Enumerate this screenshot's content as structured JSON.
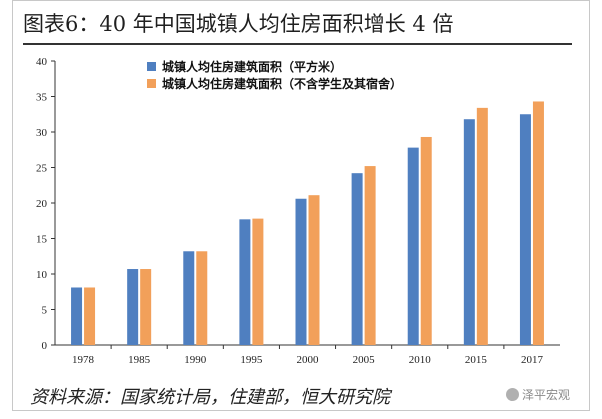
{
  "title": "图表6：40 年中国城镇人均住房面积增长 4 倍",
  "source": "资料来源：国家统计局，住建部，恒大研究院",
  "watermark": "泽平宏观",
  "colors": {
    "series1": "#4f7fc0",
    "series2": "#f2a05a",
    "axis": "#333333",
    "rule": "#333333"
  },
  "chart_data": {
    "type": "bar",
    "categories": [
      "1978",
      "1985",
      "1990",
      "1995",
      "2000",
      "2005",
      "2010",
      "2015",
      "2017"
    ],
    "series": [
      {
        "name": "城镇人均住房建筑面积（平方米）",
        "values": [
          8.1,
          10.7,
          13.2,
          17.7,
          20.6,
          24.2,
          27.8,
          31.8,
          32.5
        ]
      },
      {
        "name": "城镇人均住房建筑面积（不含学生及其宿舍）",
        "values": [
          8.1,
          10.7,
          13.2,
          17.8,
          21.1,
          25.2,
          29.3,
          33.4,
          34.3
        ]
      }
    ],
    "ylim": [
      0,
      40
    ],
    "yticks": [
      0,
      5,
      10,
      15,
      20,
      25,
      30,
      35,
      40
    ],
    "xlabel": "",
    "ylabel": "",
    "grid": false,
    "legend": "top-left"
  }
}
